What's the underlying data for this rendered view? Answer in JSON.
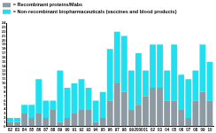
{
  "chart_data": {
    "type": "bar",
    "stacked": true,
    "grid": false,
    "legend": "top-left",
    "categories": [
      "82",
      "83",
      "84",
      "85",
      "86",
      "87",
      "88",
      "89",
      "90",
      "91",
      "92",
      "93",
      "94",
      "95",
      "96",
      "97",
      "98",
      "99",
      "2000",
      "01",
      "02",
      "03",
      "04",
      "05",
      "06",
      "07",
      "08",
      "09",
      "10"
    ],
    "series": [
      {
        "name": "= Recombinant proteins/Mabs",
        "color": "#8c9aa3",
        "values": [
          1,
          1,
          3,
          2,
          3,
          2,
          4,
          1,
          2,
          3,
          4,
          4,
          1,
          2,
          6,
          10,
          8,
          4,
          5,
          7,
          9,
          9,
          6,
          6,
          4,
          2,
          6,
          8,
          6
        ]
      },
      {
        "name": "= Non-recombinant biopharmaceuticals (vaccines and blood products)",
        "color": "#1ee0f0",
        "values": [
          1,
          1,
          2,
          3,
          8,
          4,
          2,
          12,
          7,
          7,
          7,
          5,
          5,
          6,
          12,
          12,
          13,
          9,
          12,
          6,
          10,
          10,
          7,
          13,
          8,
          9,
          7,
          11,
          9
        ]
      }
    ],
    "ylim": [
      0,
      24
    ],
    "yticks": [
      0,
      1,
      2,
      3,
      4,
      5,
      6,
      7,
      8,
      9,
      10,
      11,
      12,
      13,
      14,
      15,
      16,
      17,
      18,
      19,
      20,
      21,
      22,
      23,
      24
    ]
  }
}
